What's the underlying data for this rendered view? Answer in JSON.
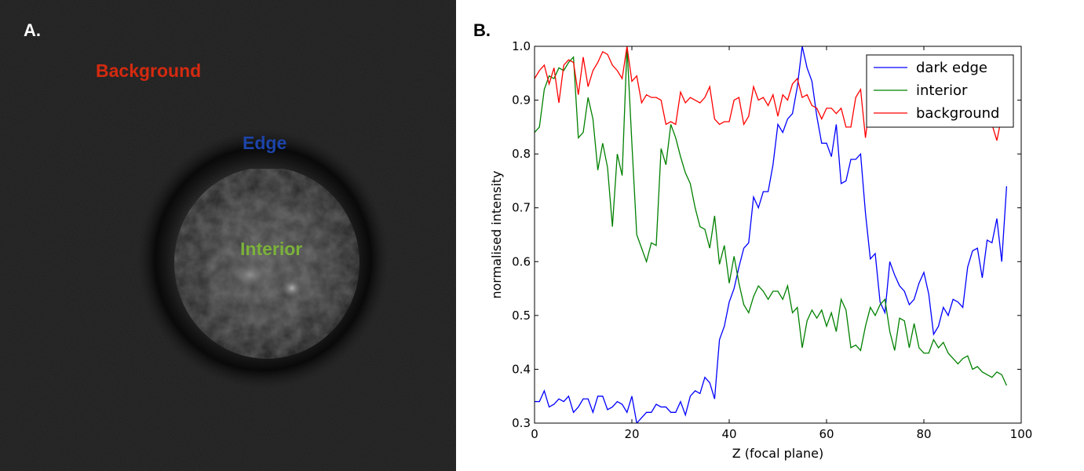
{
  "panel_a": {
    "letter": "A.",
    "labels": [
      {
        "key": "background",
        "text": "Background",
        "color": "#d42a10"
      },
      {
        "key": "edge",
        "text": "Edge",
        "color": "#1c44a8"
      },
      {
        "key": "interior",
        "text": "Interior",
        "color": "#7bb23a"
      }
    ]
  },
  "panel_b": {
    "letter": "B."
  },
  "chart_data": {
    "type": "line",
    "xlabel": "Z (focal plane)",
    "ylabel": "normalised intensity",
    "xlim": [
      0,
      100
    ],
    "ylim": [
      0.3,
      1.0
    ],
    "xticks": [
      0,
      20,
      40,
      60,
      80,
      100
    ],
    "yticks": [
      0.3,
      0.4,
      0.5,
      0.6,
      0.7,
      0.8,
      0.9,
      1.0
    ],
    "grid": false,
    "legend_position": "top-right",
    "x": [
      0,
      1,
      2,
      3,
      4,
      5,
      6,
      7,
      8,
      9,
      10,
      11,
      12,
      13,
      14,
      15,
      16,
      17,
      18,
      19,
      20,
      21,
      22,
      23,
      24,
      25,
      26,
      27,
      28,
      29,
      30,
      31,
      32,
      33,
      34,
      35,
      36,
      37,
      38,
      39,
      40,
      41,
      42,
      43,
      44,
      45,
      46,
      47,
      48,
      49,
      50,
      51,
      52,
      53,
      54,
      55,
      56,
      57,
      58,
      59,
      60,
      61,
      62,
      63,
      64,
      65,
      66,
      67,
      68,
      69,
      70,
      71,
      72,
      73,
      74,
      75,
      76,
      77,
      78,
      79,
      80,
      81,
      82,
      83,
      84,
      85,
      86,
      87,
      88,
      89,
      90,
      91,
      92,
      93,
      94,
      95,
      96,
      97
    ],
    "series": [
      {
        "name": "dark edge",
        "color": "#0000ff",
        "values": [
          0.34,
          0.34,
          0.36,
          0.33,
          0.335,
          0.345,
          0.34,
          0.35,
          0.32,
          0.33,
          0.345,
          0.345,
          0.32,
          0.35,
          0.35,
          0.325,
          0.33,
          0.34,
          0.335,
          0.32,
          0.35,
          0.3,
          0.31,
          0.32,
          0.32,
          0.335,
          0.33,
          0.33,
          0.32,
          0.32,
          0.34,
          0.315,
          0.35,
          0.36,
          0.355,
          0.385,
          0.375,
          0.345,
          0.455,
          0.48,
          0.525,
          0.55,
          0.59,
          0.625,
          0.635,
          0.72,
          0.7,
          0.73,
          0.73,
          0.78,
          0.855,
          0.84,
          0.865,
          0.875,
          0.925,
          1.0,
          0.96,
          0.935,
          0.87,
          0.82,
          0.82,
          0.795,
          0.855,
          0.745,
          0.75,
          0.79,
          0.79,
          0.8,
          0.69,
          0.605,
          0.615,
          0.525,
          0.505,
          0.6,
          0.575,
          0.555,
          0.545,
          0.52,
          0.53,
          0.56,
          0.58,
          0.54,
          0.465,
          0.48,
          0.515,
          0.5,
          0.53,
          0.525,
          0.515,
          0.59,
          0.62,
          0.625,
          0.57,
          0.64,
          0.635,
          0.68,
          0.6,
          0.74
        ]
      },
      {
        "name": "interior",
        "color": "#008000",
        "values": [
          0.84,
          0.85,
          0.92,
          0.945,
          0.94,
          0.96,
          0.955,
          0.97,
          0.98,
          0.83,
          0.84,
          0.905,
          0.865,
          0.77,
          0.82,
          0.775,
          0.665,
          0.8,
          0.76,
          1.0,
          0.82,
          0.65,
          0.625,
          0.6,
          0.635,
          0.63,
          0.81,
          0.78,
          0.855,
          0.83,
          0.795,
          0.765,
          0.745,
          0.7,
          0.665,
          0.66,
          0.625,
          0.685,
          0.595,
          0.63,
          0.56,
          0.61,
          0.56,
          0.52,
          0.505,
          0.535,
          0.555,
          0.545,
          0.53,
          0.545,
          0.545,
          0.53,
          0.555,
          0.505,
          0.515,
          0.44,
          0.49,
          0.51,
          0.495,
          0.51,
          0.48,
          0.505,
          0.47,
          0.53,
          0.51,
          0.44,
          0.445,
          0.435,
          0.48,
          0.515,
          0.5,
          0.52,
          0.53,
          0.47,
          0.435,
          0.495,
          0.49,
          0.44,
          0.485,
          0.44,
          0.43,
          0.43,
          0.455,
          0.44,
          0.45,
          0.43,
          0.42,
          0.41,
          0.42,
          0.425,
          0.4,
          0.405,
          0.395,
          0.39,
          0.385,
          0.395,
          0.39,
          0.37
        ]
      },
      {
        "name": "background",
        "color": "#ff0000",
        "values": [
          0.94,
          0.955,
          0.965,
          0.93,
          0.96,
          0.895,
          0.965,
          0.975,
          0.97,
          0.91,
          0.98,
          0.925,
          0.955,
          0.97,
          0.99,
          0.985,
          0.965,
          0.955,
          0.94,
          1.0,
          0.935,
          0.945,
          0.895,
          0.91,
          0.905,
          0.905,
          0.9,
          0.855,
          0.86,
          0.855,
          0.915,
          0.895,
          0.905,
          0.9,
          0.895,
          0.905,
          0.925,
          0.865,
          0.855,
          0.86,
          0.86,
          0.9,
          0.905,
          0.855,
          0.87,
          0.925,
          0.9,
          0.905,
          0.89,
          0.91,
          0.87,
          0.91,
          0.9,
          0.93,
          0.94,
          0.905,
          0.91,
          0.89,
          0.885,
          0.865,
          0.885,
          0.885,
          0.875,
          0.885,
          0.85,
          0.85,
          0.905,
          0.92,
          0.83,
          0.905,
          0.92,
          0.88,
          0.86,
          0.9,
          0.87,
          0.88,
          0.89,
          0.86,
          0.87,
          0.875,
          0.86,
          0.87,
          0.86,
          0.875,
          0.89,
          0.87,
          0.855,
          0.87,
          0.86,
          0.86,
          0.88,
          0.875,
          0.86,
          0.86,
          0.855,
          0.825,
          0.87,
          0.88
        ]
      }
    ]
  }
}
